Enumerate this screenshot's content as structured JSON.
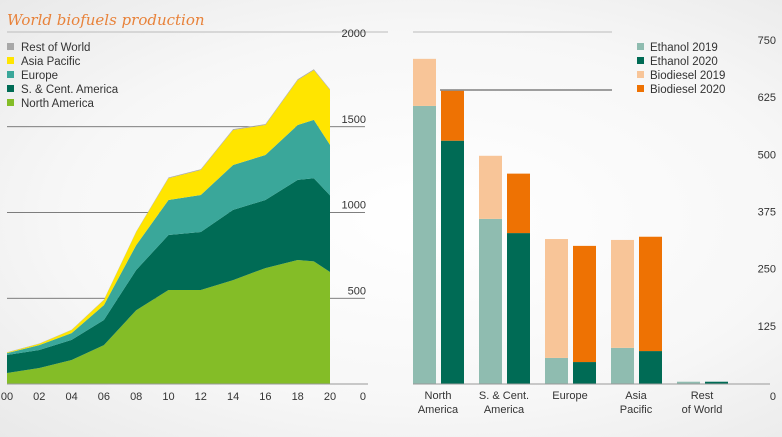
{
  "chart_data": [
    {
      "type": "area",
      "title": "World biofuels production",
      "xlabel": "",
      "ylabel": "",
      "x": [
        2000,
        2002,
        2004,
        2006,
        2008,
        2010,
        2012,
        2014,
        2016,
        2018,
        2019,
        2020
      ],
      "xticks": [
        "00",
        "02",
        "04",
        "06",
        "08",
        "10",
        "12",
        "14",
        "16",
        "18",
        "20"
      ],
      "ylim": [
        0,
        2000
      ],
      "yticks": [
        "0",
        "500",
        "1000",
        "1500",
        "2000"
      ],
      "legend_position": "top-left",
      "series": [
        {
          "name": "North America",
          "color": "#84bd27",
          "values": [
            64,
            93,
            140,
            227,
            430,
            548,
            548,
            606,
            676,
            723,
            715,
            653
          ]
        },
        {
          "name": "S. & Cent. America",
          "color": "#006b55",
          "values": [
            105,
            105,
            117,
            146,
            235,
            321,
            338,
            409,
            397,
            467,
            485,
            447
          ]
        },
        {
          "name": "Europe",
          "color": "#3aa79a",
          "values": [
            11,
            29,
            40,
            87,
            145,
            204,
            216,
            262,
            262,
            320,
            340,
            294
          ]
        },
        {
          "name": "Asia Pacific",
          "color": "#ffe500",
          "values": [
            4,
            8,
            18,
            30,
            76,
            127,
            146,
            204,
            175,
            262,
            290,
            320
          ]
        },
        {
          "name": "Rest of World",
          "color": "#a8a8a8",
          "values": [
            1,
            1,
            1,
            2,
            3,
            4,
            4,
            5,
            5,
            5,
            5,
            5
          ]
        }
      ]
    },
    {
      "type": "bar",
      "categories": [
        "North America",
        "S. & Cent. America",
        "Europe",
        "Asia Pacific",
        "Rest of World"
      ],
      "category_lines": [
        [
          "North",
          "America"
        ],
        [
          "S. & Cent.",
          "America"
        ],
        [
          "Europe",
          ""
        ],
        [
          "Asia",
          "Pacific"
        ],
        [
          "Rest",
          "of World"
        ]
      ],
      "ylim": [
        0,
        750
      ],
      "yticks": [
        "0",
        "125",
        "250",
        "375",
        "500",
        "625",
        "750"
      ],
      "legend_position": "top-right",
      "stacked_pairs": true,
      "series": [
        {
          "name": "Ethanol 2019",
          "color": "#8fbcb0",
          "values": [
            608,
            361,
            57,
            79,
            5
          ]
        },
        {
          "name": "Ethanol 2020",
          "color": "#006b55",
          "values": [
            532,
            330,
            48,
            72,
            5
          ]
        },
        {
          "name": "Biodiesel 2019",
          "color": "#f8c598",
          "values": [
            103,
            138,
            260,
            236,
            0
          ]
        },
        {
          "name": "Biodiesel 2020",
          "color": "#ee7203",
          "values": [
            109,
            130,
            254,
            250,
            0
          ]
        }
      ]
    }
  ]
}
